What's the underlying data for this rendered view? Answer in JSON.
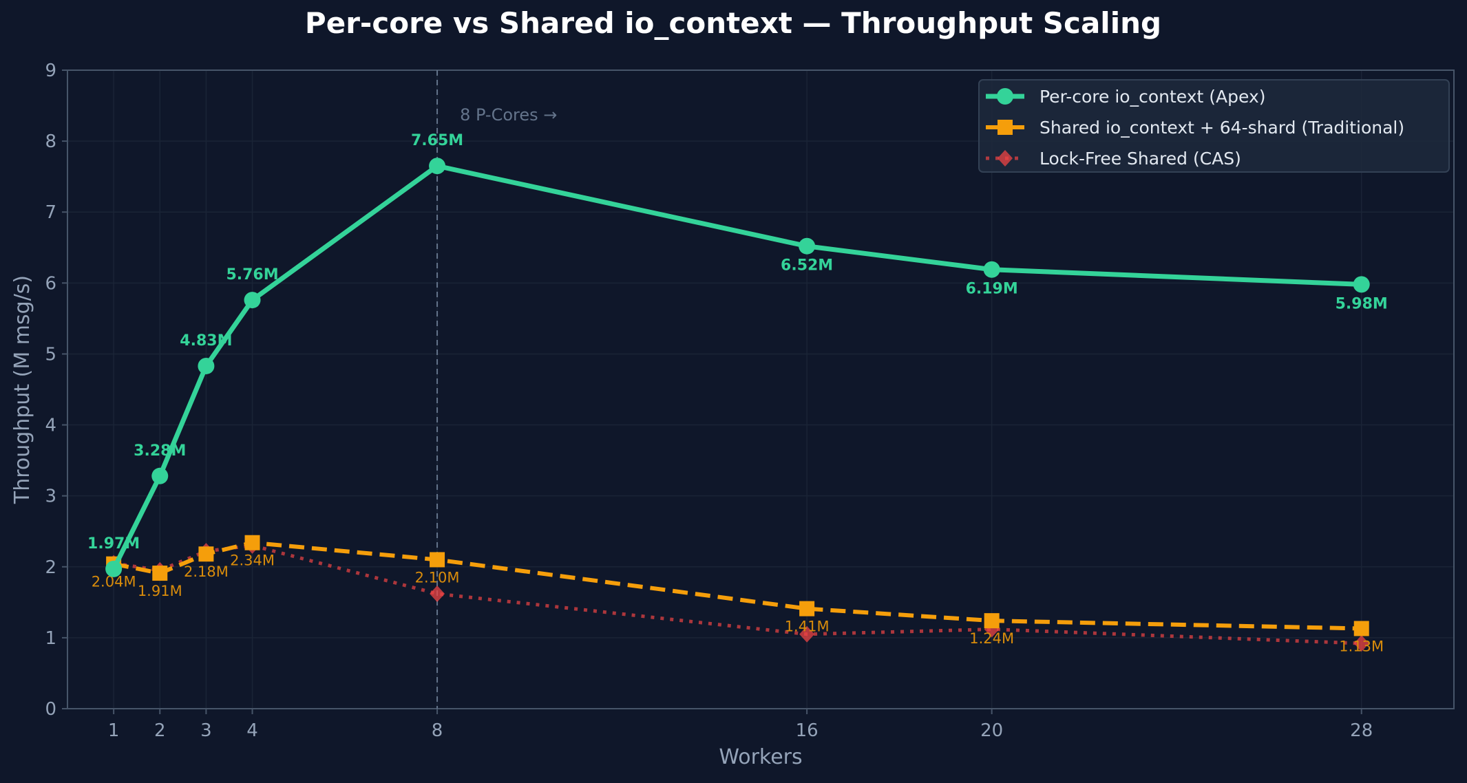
{
  "chart_data": {
    "type": "line",
    "title": "Per-core vs Shared io_context — Throughput Scaling",
    "xlabel": "Workers",
    "ylabel": "Throughput (M msg/s)",
    "xlim": [
      0,
      30
    ],
    "ylim": [
      0,
      9
    ],
    "x_ticks": [
      1,
      2,
      3,
      4,
      8,
      16,
      20,
      28
    ],
    "y_ticks": [
      0,
      1,
      2,
      3,
      4,
      5,
      6,
      7,
      8,
      9
    ],
    "grid": true,
    "legend_position": "top-left",
    "x": [
      1,
      2,
      3,
      4,
      8,
      16,
      20,
      28
    ],
    "series": [
      {
        "name": "Per-core io_context (Apex)",
        "color": "#34d399",
        "style": "solid",
        "marker": "circle",
        "values": [
          1.97,
          3.28,
          4.83,
          5.76,
          7.65,
          6.52,
          6.19,
          5.98
        ],
        "labels": [
          "1.97M",
          "3.28M",
          "4.83M",
          "5.76M",
          "7.65M",
          "6.52M",
          "6.19M",
          "5.98M"
        ]
      },
      {
        "name": "Shared io_context + 64-shard (Traditional)",
        "color": "#f59e0b",
        "style": "dashed",
        "marker": "square",
        "values": [
          2.04,
          1.91,
          2.18,
          2.34,
          2.1,
          1.41,
          1.24,
          1.13
        ],
        "labels": [
          "2.04M",
          "1.91M",
          "2.18M",
          "2.34M",
          "2.10M",
          "1.41M",
          "1.24M",
          "1.13M"
        ]
      },
      {
        "name": "Lock-Free Shared (CAS)",
        "color": "#ef4444",
        "style": "dotted",
        "marker": "diamond",
        "values": [
          2.05,
          1.95,
          2.22,
          2.3,
          1.62,
          1.05,
          1.12,
          0.92
        ]
      }
    ],
    "annotations": [
      {
        "text": "8 P-Cores →",
        "x": 8
      }
    ],
    "vline_x": 8,
    "colors": {
      "background": "#0f172a",
      "grid": "#1a2436",
      "axis": "#475569",
      "tick_text": "#94a3b8",
      "title": "#ffffff"
    }
  }
}
